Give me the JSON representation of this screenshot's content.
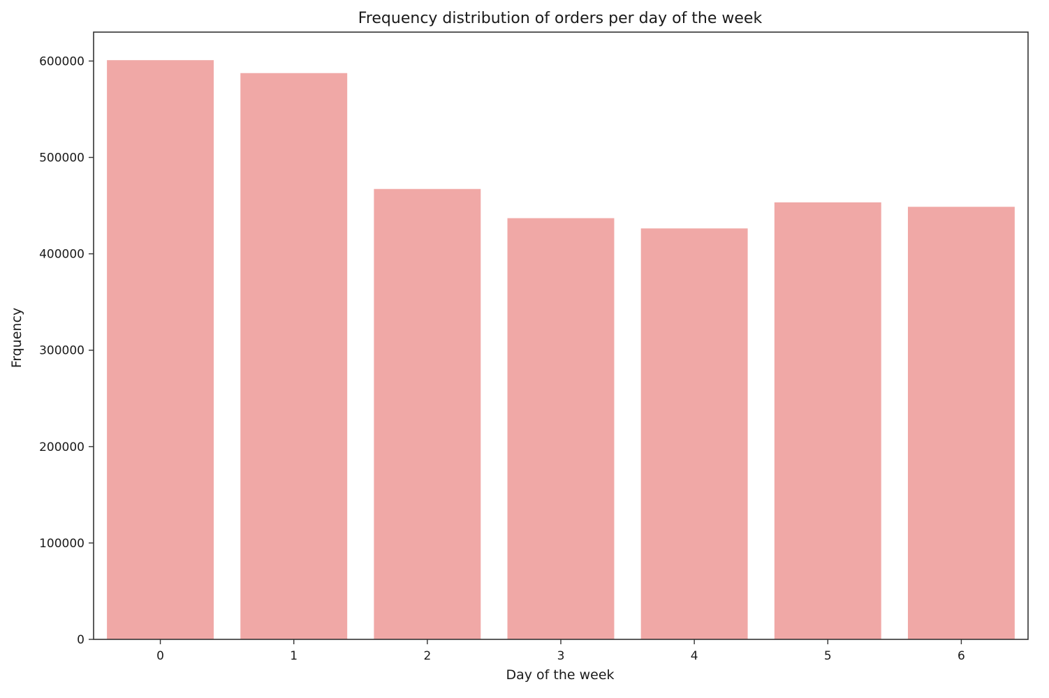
{
  "chart_data": {
    "type": "bar",
    "title": "Frequency distribution of orders per day of the week",
    "xlabel": "Day of the week",
    "ylabel": "Frquency",
    "categories": [
      "0",
      "1",
      "2",
      "3",
      "4",
      "5",
      "6"
    ],
    "values": [
      600905,
      587478,
      467260,
      436972,
      426339,
      453368,
      448761
    ],
    "ylim": [
      0,
      630000
    ],
    "yticks": [
      0,
      100000,
      200000,
      300000,
      400000,
      500000,
      600000
    ],
    "grid": false,
    "legend": "none",
    "bar_color": "#f0a8a6",
    "axis_color": "#333333"
  }
}
